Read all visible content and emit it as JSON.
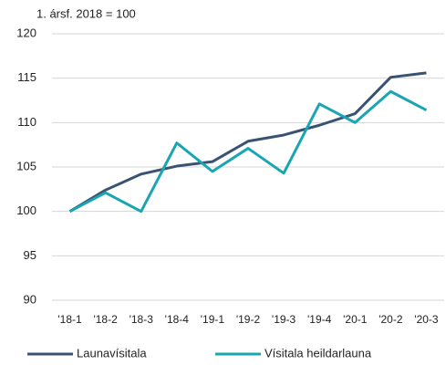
{
  "chart_data": {
    "type": "line",
    "subtitle": "1. ársf. 2018 = 100",
    "categories": [
      "'18-1",
      "'18-2",
      "'18-3",
      "'18-4",
      "'19-1",
      "'19-2",
      "'19-3",
      "'19-4",
      "'20-1",
      "'20-2",
      "'20-3"
    ],
    "series": [
      {
        "name": "Launavísitala",
        "color": "#3a5373",
        "values": [
          100,
          102.4,
          104.2,
          105.1,
          105.6,
          107.9,
          108.6,
          109.7,
          111.0,
          115.1,
          115.6
        ]
      },
      {
        "name": "Vísitala heildarlauna",
        "color": "#1aa5b3",
        "values": [
          100,
          102.1,
          100.0,
          107.7,
          104.5,
          107.1,
          104.3,
          112.1,
          110.0,
          113.5,
          111.4
        ]
      }
    ],
    "ylim": [
      90,
      120
    ],
    "yticks": [
      90,
      95,
      100,
      105,
      110,
      115,
      120
    ],
    "grid": true,
    "legend": "bottom"
  }
}
